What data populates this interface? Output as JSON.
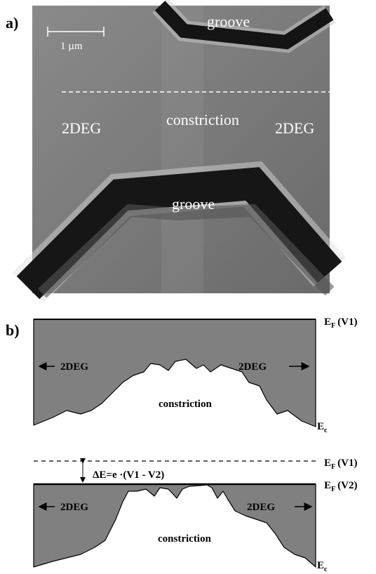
{
  "panel_a": {
    "label": "a)",
    "scale_bar": "1 µm",
    "groove_top": "groove",
    "left_region": "2DEG",
    "center": "constriction",
    "right_region": "2DEG",
    "groove_bottom": "groove"
  },
  "panel_b": {
    "label": "b)",
    "top": {
      "ef": {
        "symbol": "E",
        "sub": "F",
        "arg": "(V1)"
      },
      "left_region": "2DEG",
      "right_region": "2DEG",
      "center": "constriction",
      "ec": {
        "symbol": "E",
        "sub": "c"
      }
    },
    "bottom": {
      "ef1": {
        "symbol": "E",
        "sub": "F",
        "arg": "(V1)"
      },
      "ef2": {
        "symbol": "E",
        "sub": "F",
        "arg": "(V2)"
      },
      "delta": "ΔE=e ·(V1 - V2)",
      "left_region": "2DEG",
      "right_region": "2DEG",
      "center": "constriction",
      "ec": {
        "symbol": "E",
        "sub": "c"
      }
    }
  }
}
